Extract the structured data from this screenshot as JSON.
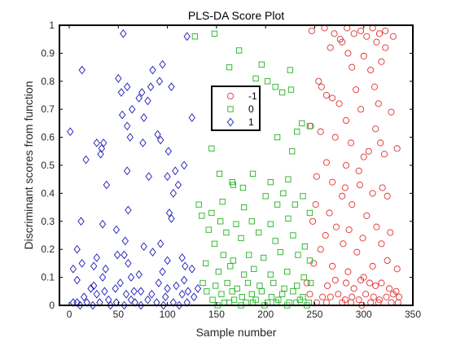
{
  "chart_data": {
    "type": "scatter",
    "title": "PLS-DA Score Plot",
    "xlabel": "Sample number",
    "ylabel": "Discriminant scores from function",
    "xlim": [
      -10,
      350
    ],
    "ylim": [
      0,
      1
    ],
    "xticks": [
      "0",
      "50",
      "100",
      "150",
      "200",
      "250",
      "300",
      "350"
    ],
    "yticks": [
      "0",
      "0.1",
      "0.2",
      "0.3",
      "0.4",
      "0.5",
      "0.6",
      "0.7",
      "0.8",
      "0.9",
      "1"
    ],
    "grid": false,
    "legend_position": "top-center",
    "series": [
      {
        "name": "-1",
        "marker": "circle",
        "color": "#e03030",
        "points": [
          [
            247,
            0.98
          ],
          [
            260,
            0.99
          ],
          [
            270,
            0.97
          ],
          [
            276,
            0.95
          ],
          [
            283,
            0.99
          ],
          [
            290,
            0.97
          ],
          [
            297,
            0.98
          ],
          [
            303,
            0.96
          ],
          [
            309,
            0.99
          ],
          [
            316,
            0.97
          ],
          [
            322,
            0.98
          ],
          [
            330,
            0.96
          ],
          [
            266,
            0.92
          ],
          [
            278,
            0.94
          ],
          [
            284,
            0.9
          ],
          [
            300,
            0.89
          ],
          [
            313,
            0.94
          ],
          [
            318,
            0.87
          ],
          [
            322,
            0.92
          ],
          [
            288,
            0.85
          ],
          [
            307,
            0.84
          ],
          [
            254,
            0.8
          ],
          [
            257,
            0.78
          ],
          [
            262,
            0.75
          ],
          [
            268,
            0.74
          ],
          [
            275,
            0.72
          ],
          [
            292,
            0.77
          ],
          [
            311,
            0.78
          ],
          [
            297,
            0.7
          ],
          [
            315,
            0.72
          ],
          [
            328,
            0.69
          ],
          [
            282,
            0.66
          ],
          [
            246,
            0.64
          ],
          [
            256,
            0.62
          ],
          [
            271,
            0.6
          ],
          [
            287,
            0.58
          ],
          [
            312,
            0.63
          ],
          [
            317,
            0.58
          ],
          [
            305,
            0.55
          ],
          [
            300,
            0.53
          ],
          [
            321,
            0.54
          ],
          [
            334,
            0.56
          ],
          [
            262,
            0.51
          ],
          [
            282,
            0.5
          ],
          [
            295,
            0.48
          ],
          [
            252,
            0.46
          ],
          [
            268,
            0.44
          ],
          [
            281,
            0.42
          ],
          [
            278,
            0.39
          ],
          [
            296,
            0.43
          ],
          [
            309,
            0.4
          ],
          [
            319,
            0.42
          ],
          [
            324,
            0.39
          ],
          [
            251,
            0.36
          ],
          [
            265,
            0.33
          ],
          [
            288,
            0.36
          ],
          [
            303,
            0.32
          ],
          [
            248,
            0.3
          ],
          [
            272,
            0.28
          ],
          [
            285,
            0.27
          ],
          [
            313,
            0.28
          ],
          [
            327,
            0.26
          ],
          [
            261,
            0.25
          ],
          [
            299,
            0.24
          ],
          [
            318,
            0.22
          ],
          [
            256,
            0.2
          ],
          [
            279,
            0.22
          ],
          [
            293,
            0.19
          ],
          [
            249,
            0.15
          ],
          [
            268,
            0.14
          ],
          [
            284,
            0.12
          ],
          [
            300,
            0.1
          ],
          [
            309,
            0.14
          ],
          [
            324,
            0.16
          ],
          [
            334,
            0.13
          ],
          [
            242,
            0.08
          ],
          [
            263,
            0.07
          ],
          [
            271,
            0.09
          ],
          [
            282,
            0.08
          ],
          [
            290,
            0.06
          ],
          [
            297,
            0.09
          ],
          [
            306,
            0.08
          ],
          [
            312,
            0.07
          ],
          [
            318,
            0.08
          ],
          [
            326,
            0.06
          ],
          [
            333,
            0.05
          ],
          [
            245,
            0.04
          ],
          [
            258,
            0.03
          ],
          [
            266,
            0.03
          ],
          [
            274,
            0.04
          ],
          [
            281,
            0.02
          ],
          [
            288,
            0.03
          ],
          [
            295,
            0.02
          ],
          [
            302,
            0.04
          ],
          [
            310,
            0.03
          ],
          [
            316,
            0.02
          ],
          [
            323,
            0.03
          ],
          [
            330,
            0.04
          ],
          [
            336,
            0.03
          ],
          [
            252,
            0.01
          ],
          [
            262,
            0.01
          ],
          [
            278,
            0.01
          ],
          [
            287,
            0.01
          ],
          [
            298,
            0.0
          ],
          [
            307,
            0.01
          ],
          [
            315,
            0.01
          ],
          [
            328,
            0.01
          ],
          [
            335,
            0.01
          ]
        ]
      },
      {
        "name": "0",
        "marker": "square",
        "color": "#22b322",
        "points": [
          [
            128,
            0.96
          ],
          [
            148,
            0.97
          ],
          [
            173,
            0.91
          ],
          [
            163,
            0.85
          ],
          [
            196,
            0.86
          ],
          [
            190,
            0.81
          ],
          [
            202,
            0.8
          ],
          [
            217,
            0.76
          ],
          [
            225,
            0.84
          ],
          [
            210,
            0.78
          ],
          [
            226,
            0.77
          ],
          [
            237,
            0.65
          ],
          [
            232,
            0.62
          ],
          [
            245,
            0.64
          ],
          [
            212,
            0.6
          ],
          [
            227,
            0.55
          ],
          [
            145,
            0.56
          ],
          [
            153,
            0.47
          ],
          [
            177,
            0.42
          ],
          [
            166,
            0.44
          ],
          [
            167,
            0.43
          ],
          [
            187,
            0.47
          ],
          [
            205,
            0.44
          ],
          [
            223,
            0.45
          ],
          [
            218,
            0.4
          ],
          [
            238,
            0.39
          ],
          [
            132,
            0.36
          ],
          [
            156,
            0.37
          ],
          [
            178,
            0.35
          ],
          [
            200,
            0.39
          ],
          [
            212,
            0.36
          ],
          [
            230,
            0.36
          ],
          [
            145,
            0.33
          ],
          [
            154,
            0.3
          ],
          [
            170,
            0.29
          ],
          [
            186,
            0.3
          ],
          [
            205,
            0.29
          ],
          [
            223,
            0.31
          ],
          [
            245,
            0.33
          ],
          [
            135,
            0.32
          ],
          [
            142,
            0.27
          ],
          [
            160,
            0.26
          ],
          [
            175,
            0.24
          ],
          [
            193,
            0.26
          ],
          [
            210,
            0.23
          ],
          [
            228,
            0.25
          ],
          [
            240,
            0.21
          ],
          [
            148,
            0.22
          ],
          [
            157,
            0.18
          ],
          [
            167,
            0.16
          ],
          [
            183,
            0.18
          ],
          [
            198,
            0.17
          ],
          [
            215,
            0.19
          ],
          [
            233,
            0.18
          ],
          [
            245,
            0.16
          ],
          [
            139,
            0.15
          ],
          [
            152,
            0.12
          ],
          [
            164,
            0.14
          ],
          [
            178,
            0.11
          ],
          [
            188,
            0.13
          ],
          [
            205,
            0.11
          ],
          [
            222,
            0.12
          ],
          [
            239,
            0.1
          ],
          [
            136,
            0.08
          ],
          [
            149,
            0.07
          ],
          [
            161,
            0.08
          ],
          [
            171,
            0.06
          ],
          [
            182,
            0.08
          ],
          [
            194,
            0.07
          ],
          [
            208,
            0.08
          ],
          [
            219,
            0.06
          ],
          [
            232,
            0.07
          ],
          [
            246,
            0.08
          ],
          [
            140,
            0.05
          ],
          [
            155,
            0.04
          ],
          [
            166,
            0.05
          ],
          [
            176,
            0.03
          ],
          [
            186,
            0.04
          ],
          [
            196,
            0.05
          ],
          [
            206,
            0.03
          ],
          [
            217,
            0.04
          ],
          [
            228,
            0.05
          ],
          [
            238,
            0.03
          ],
          [
            146,
            0.02
          ],
          [
            158,
            0.01
          ],
          [
            168,
            0.02
          ],
          [
            180,
            0.01
          ],
          [
            190,
            0.02
          ],
          [
            202,
            0.01
          ],
          [
            213,
            0.02
          ],
          [
            224,
            0.01
          ],
          [
            235,
            0.02
          ],
          [
            244,
            0.01
          ],
          [
            151,
            0.0
          ],
          [
            163,
            0.01
          ],
          [
            175,
            0.0
          ],
          [
            187,
            0.01
          ],
          [
            199,
            0.0
          ],
          [
            211,
            0.01
          ],
          [
            222,
            0.0
          ],
          [
            231,
            0.01
          ],
          [
            242,
            0.0
          ]
        ]
      },
      {
        "name": "1",
        "marker": "diamond",
        "color": "#1a1ab5",
        "points": [
          [
            55,
            0.97
          ],
          [
            120,
            0.96
          ],
          [
            13,
            0.84
          ],
          [
            95,
            0.86
          ],
          [
            85,
            0.84
          ],
          [
            50,
            0.81
          ],
          [
            59,
            0.78
          ],
          [
            74,
            0.76
          ],
          [
            92,
            0.8
          ],
          [
            83,
            0.78
          ],
          [
            104,
            0.78
          ],
          [
            53,
            0.76
          ],
          [
            71,
            0.74
          ],
          [
            80,
            0.73
          ],
          [
            64,
            0.7
          ],
          [
            54,
            0.68
          ],
          [
            76,
            0.67
          ],
          [
            59,
            0.64
          ],
          [
            125,
            0.67
          ],
          [
            62,
            0.6
          ],
          [
            75,
            0.58
          ],
          [
            90,
            0.61
          ],
          [
            93,
            0.59
          ],
          [
            1,
            0.62
          ],
          [
            28,
            0.58
          ],
          [
            35,
            0.58
          ],
          [
            33,
            0.56
          ],
          [
            32,
            0.54
          ],
          [
            101,
            0.55
          ],
          [
            17,
            0.52
          ],
          [
            117,
            0.5
          ],
          [
            59,
            0.48
          ],
          [
            108,
            0.48
          ],
          [
            100,
            0.46
          ],
          [
            81,
            0.46
          ],
          [
            38,
            0.43
          ],
          [
            111,
            0.43
          ],
          [
            106,
            0.4
          ],
          [
            60,
            0.34
          ],
          [
            102,
            0.33
          ],
          [
            104,
            0.31
          ],
          [
            12,
            0.3
          ],
          [
            48,
            0.27
          ],
          [
            34,
            0.29
          ],
          [
            57,
            0.23
          ],
          [
            93,
            0.22
          ],
          [
            76,
            0.21
          ],
          [
            8,
            0.2
          ],
          [
            85,
            0.19
          ],
          [
            115,
            0.17
          ],
          [
            49,
            0.18
          ],
          [
            56,
            0.18
          ],
          [
            13,
            0.15
          ],
          [
            28,
            0.17
          ],
          [
            60,
            0.15
          ],
          [
            25,
            0.14
          ],
          [
            37,
            0.13
          ],
          [
            100,
            0.16
          ],
          [
            4,
            0.13
          ],
          [
            71,
            0.11
          ],
          [
            118,
            0.14
          ],
          [
            125,
            0.13
          ],
          [
            95,
            0.12
          ],
          [
            63,
            0.1
          ],
          [
            34,
            0.1
          ],
          [
            8,
            0.09
          ],
          [
            117,
            0.09
          ],
          [
            25,
            0.07
          ],
          [
            109,
            0.07
          ],
          [
            52,
            0.08
          ],
          [
            91,
            0.08
          ],
          [
            22,
            0.06
          ],
          [
            47,
            0.06
          ],
          [
            66,
            0.05
          ],
          [
            73,
            0.05
          ],
          [
            100,
            0.06
          ],
          [
            121,
            0.05
          ],
          [
            131,
            0.06
          ],
          [
            28,
            0.04
          ],
          [
            36,
            0.05
          ],
          [
            58,
            0.04
          ],
          [
            84,
            0.04
          ],
          [
            115,
            0.04
          ],
          [
            127,
            0.03
          ],
          [
            15,
            0.03
          ],
          [
            40,
            0.02
          ],
          [
            63,
            0.02
          ],
          [
            80,
            0.02
          ],
          [
            98,
            0.03
          ],
          [
            4,
            0.01
          ],
          [
            8,
            0.01
          ],
          [
            11,
            0.0
          ],
          [
            18,
            0.01
          ],
          [
            24,
            0.0
          ],
          [
            31,
            0.01
          ],
          [
            42,
            0.0
          ],
          [
            48,
            0.01
          ],
          [
            56,
            0.0
          ],
          [
            67,
            0.01
          ],
          [
            73,
            0.0
          ],
          [
            89,
            0.01
          ],
          [
            96,
            0.0
          ],
          [
            106,
            0.01
          ],
          [
            112,
            0.0
          ],
          [
            120,
            0.01
          ]
        ]
      }
    ]
  }
}
